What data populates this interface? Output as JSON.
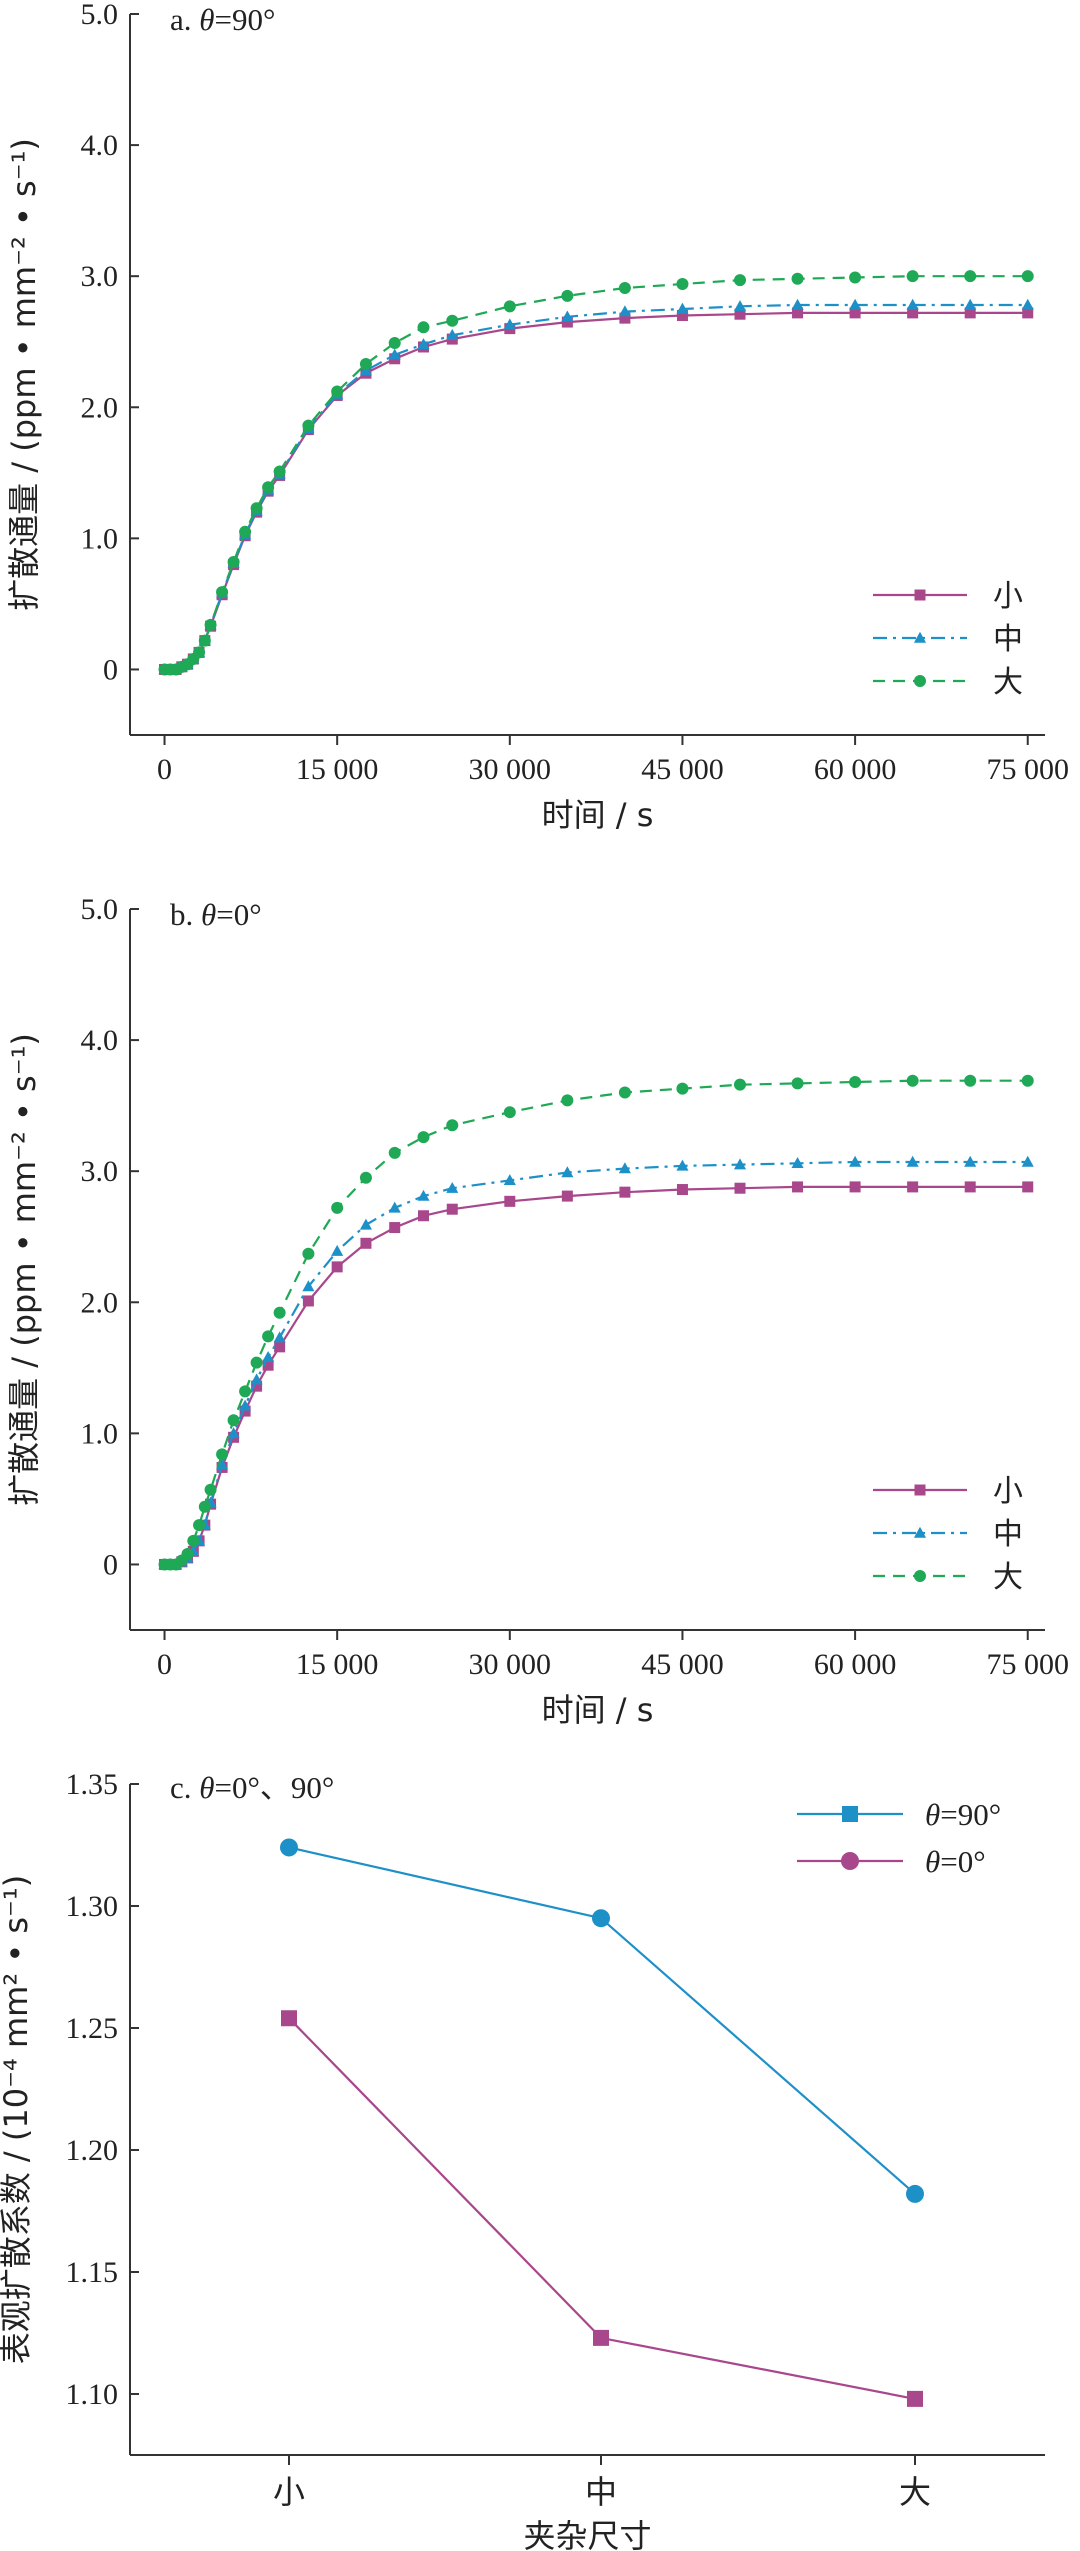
{
  "chart_data": [
    {
      "type": "line",
      "panel_label": "a.",
      "panel_label_angle": "θ=90°",
      "xlabel": "时间 / s",
      "ylabel": "扩散通量 / (ppm • mm⁻² • s⁻¹)",
      "xlim": [
        -3000,
        76500
      ],
      "ylim": [
        -0.5,
        5.0
      ],
      "xticks": [
        0,
        15000,
        30000,
        45000,
        60000,
        75000
      ],
      "xtick_labels": [
        "0",
        "15 000",
        "30 000",
        "45 000",
        "60 000",
        "75 000"
      ],
      "yticks": [
        0,
        1.0,
        2.0,
        3.0,
        4.0,
        5.0
      ],
      "ytick_labels": [
        "0",
        "1.0",
        "2.0",
        "3.0",
        "4.0",
        "5.0"
      ],
      "legend_position": "bottom-right",
      "series": [
        {
          "name": "小",
          "color": "#A8478C",
          "marker": "square",
          "dash": "solid",
          "x": [
            0,
            500,
            1000,
            1500,
            2000,
            2500,
            3000,
            3500,
            4000,
            5000,
            6000,
            7000,
            8000,
            9000,
            10000,
            12500,
            15000,
            17500,
            20000,
            22500,
            25000,
            30000,
            35000,
            40000,
            45000,
            50000,
            55000,
            60000,
            65000,
            70000,
            75000
          ],
          "y": [
            0,
            0,
            0,
            0.02,
            0.04,
            0.08,
            0.13,
            0.22,
            0.33,
            0.57,
            0.8,
            1.02,
            1.2,
            1.36,
            1.48,
            1.83,
            2.09,
            2.26,
            2.37,
            2.46,
            2.52,
            2.6,
            2.65,
            2.68,
            2.7,
            2.71,
            2.72,
            2.72,
            2.72,
            2.72,
            2.72
          ]
        },
        {
          "name": "中",
          "color": "#1E90C8",
          "marker": "triangle",
          "dash": "dashdot",
          "x": [
            0,
            500,
            1000,
            1500,
            2000,
            2500,
            3000,
            3500,
            4000,
            5000,
            6000,
            7000,
            8000,
            9000,
            10000,
            12500,
            15000,
            17500,
            20000,
            22500,
            25000,
            30000,
            35000,
            40000,
            45000,
            50000,
            55000,
            60000,
            65000,
            70000,
            75000
          ],
          "y": [
            0,
            0,
            0,
            0.02,
            0.04,
            0.08,
            0.13,
            0.22,
            0.34,
            0.58,
            0.81,
            1.03,
            1.21,
            1.37,
            1.49,
            1.84,
            2.1,
            2.28,
            2.4,
            2.48,
            2.55,
            2.63,
            2.69,
            2.73,
            2.75,
            2.77,
            2.78,
            2.78,
            2.78,
            2.78,
            2.78
          ]
        },
        {
          "name": "大",
          "color": "#1FA855",
          "marker": "circle",
          "dash": "dashed",
          "x": [
            0,
            500,
            1000,
            1500,
            2000,
            2500,
            3000,
            3500,
            4000,
            5000,
            6000,
            7000,
            8000,
            9000,
            10000,
            12500,
            15000,
            17500,
            20000,
            22500,
            25000,
            30000,
            35000,
            40000,
            45000,
            50000,
            55000,
            60000,
            65000,
            70000,
            75000
          ],
          "y": [
            0,
            0,
            0,
            0.02,
            0.04,
            0.08,
            0.13,
            0.22,
            0.34,
            0.59,
            0.82,
            1.05,
            1.23,
            1.39,
            1.51,
            1.86,
            2.12,
            2.33,
            2.49,
            2.61,
            2.66,
            2.77,
            2.85,
            2.91,
            2.94,
            2.97,
            2.98,
            2.99,
            3.0,
            3.0,
            3.0
          ]
        }
      ]
    },
    {
      "type": "line",
      "panel_label": "b.",
      "panel_label_angle": "θ=0°",
      "xlabel": "时间 / s",
      "ylabel": "扩散通量 / (ppm • mm⁻² • s⁻¹)",
      "xlim": [
        -3000,
        76500
      ],
      "ylim": [
        -0.5,
        5.0
      ],
      "xticks": [
        0,
        15000,
        30000,
        45000,
        60000,
        75000
      ],
      "xtick_labels": [
        "0",
        "15 000",
        "30 000",
        "45 000",
        "60 000",
        "75 000"
      ],
      "yticks": [
        0,
        1.0,
        2.0,
        3.0,
        4.0,
        5.0
      ],
      "ytick_labels": [
        "0",
        "1.0",
        "2.0",
        "3.0",
        "4.0",
        "5.0"
      ],
      "legend_position": "bottom-right",
      "series": [
        {
          "name": "小",
          "color": "#A8478C",
          "marker": "square",
          "dash": "solid",
          "x": [
            0,
            500,
            1000,
            1500,
            2000,
            2500,
            3000,
            3500,
            4000,
            5000,
            6000,
            7000,
            8000,
            9000,
            10000,
            12500,
            15000,
            17500,
            20000,
            22500,
            25000,
            30000,
            35000,
            40000,
            45000,
            50000,
            55000,
            60000,
            65000,
            70000,
            75000
          ],
          "y": [
            0,
            0,
            0,
            0.02,
            0.05,
            0.1,
            0.18,
            0.3,
            0.46,
            0.74,
            0.97,
            1.17,
            1.36,
            1.52,
            1.66,
            2.01,
            2.27,
            2.45,
            2.57,
            2.66,
            2.71,
            2.77,
            2.81,
            2.84,
            2.86,
            2.87,
            2.88,
            2.88,
            2.88,
            2.88,
            2.88
          ]
        },
        {
          "name": "中",
          "color": "#1E90C8",
          "marker": "triangle",
          "dash": "dashdot",
          "x": [
            0,
            500,
            1000,
            1500,
            2000,
            2500,
            3000,
            3500,
            4000,
            5000,
            6000,
            7000,
            8000,
            9000,
            10000,
            12500,
            15000,
            17500,
            20000,
            22500,
            25000,
            30000,
            35000,
            40000,
            45000,
            50000,
            55000,
            60000,
            65000,
            70000,
            75000
          ],
          "y": [
            0,
            0,
            0,
            0.02,
            0.05,
            0.1,
            0.18,
            0.3,
            0.47,
            0.76,
            1.0,
            1.21,
            1.41,
            1.58,
            1.73,
            2.12,
            2.39,
            2.59,
            2.72,
            2.81,
            2.87,
            2.93,
            2.99,
            3.02,
            3.04,
            3.05,
            3.06,
            3.07,
            3.07,
            3.07,
            3.07
          ]
        },
        {
          "name": "大",
          "color": "#1FA855",
          "marker": "circle",
          "dash": "dashed",
          "x": [
            0,
            500,
            1000,
            1500,
            2000,
            2500,
            3000,
            3500,
            4000,
            5000,
            6000,
            7000,
            8000,
            9000,
            10000,
            12500,
            15000,
            17500,
            20000,
            22500,
            25000,
            30000,
            35000,
            40000,
            45000,
            50000,
            55000,
            60000,
            65000,
            70000,
            75000
          ],
          "y": [
            0,
            0,
            0,
            0.03,
            0.08,
            0.18,
            0.3,
            0.44,
            0.57,
            0.84,
            1.1,
            1.32,
            1.54,
            1.74,
            1.92,
            2.37,
            2.72,
            2.95,
            3.14,
            3.26,
            3.35,
            3.45,
            3.54,
            3.6,
            3.63,
            3.66,
            3.67,
            3.68,
            3.69,
            3.69,
            3.69
          ]
        }
      ]
    },
    {
      "type": "line",
      "panel_label": "c.",
      "panel_label_angle": "θ=0°、90°",
      "xlabel": "夹杂尺寸",
      "ylabel": "表观扩散系数 / (10⁻⁴ mm² • s⁻¹)",
      "categories": [
        "小",
        "中",
        "大"
      ],
      "ylim": [
        1.075,
        1.35
      ],
      "yticks": [
        1.1,
        1.15,
        1.2,
        1.25,
        1.3,
        1.35
      ],
      "ytick_labels": [
        "1.10",
        "1.15",
        "1.20",
        "1.25",
        "1.30",
        "1.35"
      ],
      "legend_position": "top-right",
      "series": [
        {
          "name": "θ=90°",
          "color": "#1E90C8",
          "marker": "circle",
          "legend_marker": "square",
          "values": [
            1.324,
            1.295,
            1.182
          ]
        },
        {
          "name": "θ=0°",
          "color": "#A8478C",
          "marker": "square",
          "legend_marker": "circle",
          "values": [
            1.254,
            1.123,
            1.098
          ]
        }
      ]
    }
  ]
}
